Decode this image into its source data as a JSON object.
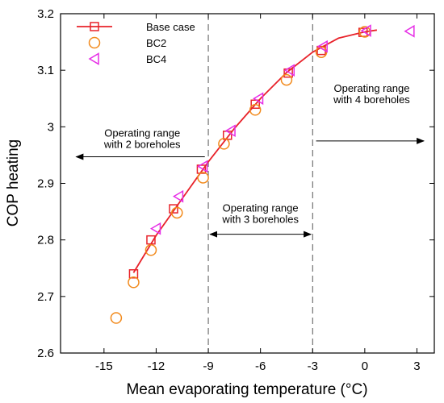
{
  "chart_data": {
    "type": "scatter",
    "title": "",
    "xlabel": "Mean evaporating temperature (°C)",
    "ylabel": "COP heating",
    "xlim": [
      -17.5,
      4
    ],
    "ylim": [
      2.6,
      3.2
    ],
    "xticks": [
      -15,
      -12,
      -9,
      -6,
      -3,
      0,
      3
    ],
    "xtick_labels": [
      "-15",
      "-12",
      "-9",
      "-6",
      "-3",
      "0",
      "3"
    ],
    "yticks": [
      2.6,
      2.7,
      2.8,
      2.9,
      3.0,
      3.1,
      3.2
    ],
    "ytick_labels": [
      "2.6",
      "2.7",
      "2.8",
      "2.9",
      "3",
      "3.1",
      "3.2"
    ],
    "grid": false,
    "legend_position": "top-left",
    "series": [
      {
        "name": "Base case",
        "marker": "square",
        "line": true,
        "color": "#e8222a",
        "x": [
          -13.3,
          -12.3,
          -11.0,
          -9.4,
          -7.9,
          -6.3,
          -4.4,
          -2.5,
          -0.1
        ],
        "y": [
          2.74,
          2.8,
          2.855,
          2.925,
          2.985,
          3.04,
          3.095,
          3.135,
          3.167
        ]
      },
      {
        "name": "BC2",
        "marker": "circle",
        "line": false,
        "color": "#f28a1c",
        "x": [
          -14.3,
          -13.3,
          -12.3,
          -10.8,
          -9.3,
          -8.1,
          -6.3,
          -4.5,
          -2.5,
          0.0
        ],
        "y": [
          2.662,
          2.725,
          2.782,
          2.848,
          2.91,
          2.97,
          3.03,
          3.083,
          3.132,
          3.168
        ]
      },
      {
        "name": "BC4",
        "marker": "triangle-left",
        "line": false,
        "color": "#e62ee6",
        "x": [
          -12.0,
          -10.7,
          -9.3,
          -7.7,
          -6.1,
          -4.3,
          -2.4,
          0.1,
          2.6
        ],
        "y": [
          2.82,
          2.877,
          2.93,
          2.993,
          3.05,
          3.1,
          3.142,
          3.17,
          3.169
        ]
      }
    ],
    "fit_curve": {
      "color": "#e8222a",
      "x": [
        -13.3,
        -12.0,
        -10.5,
        -9.0,
        -7.5,
        -6.0,
        -4.5,
        -3.0,
        -1.5,
        0.0,
        0.7
      ],
      "y": [
        2.742,
        2.808,
        2.873,
        2.938,
        2.997,
        3.05,
        3.096,
        3.132,
        3.157,
        3.168,
        3.171
      ]
    },
    "reference_lines": [
      {
        "x": -9.0
      },
      {
        "x": -3.0
      }
    ],
    "annotations": [
      {
        "id": "range-2",
        "lines": [
          "Operating range",
          "with 2 boreholes"
        ],
        "text_x": -12.8,
        "text_y1": 2.983,
        "text_y2": 2.963,
        "arrow": {
          "from": -9.2,
          "to": -16.6,
          "y": 2.947,
          "head": "start"
        }
      },
      {
        "id": "range-3",
        "lines": [
          "Operating range",
          "with 3 boreholes"
        ],
        "text_x": -6.0,
        "text_y1": 2.85,
        "text_y2": 2.83,
        "arrow": {
          "from": -8.9,
          "to": -3.1,
          "y": 2.81,
          "head": "both"
        }
      },
      {
        "id": "range-4",
        "lines": [
          "Operating range",
          "with 4 boreholes"
        ],
        "text_x": 0.4,
        "text_y1": 3.062,
        "text_y2": 3.042,
        "arrow": {
          "from": -2.8,
          "to": 3.4,
          "y": 2.975,
          "head": "end"
        }
      }
    ]
  }
}
